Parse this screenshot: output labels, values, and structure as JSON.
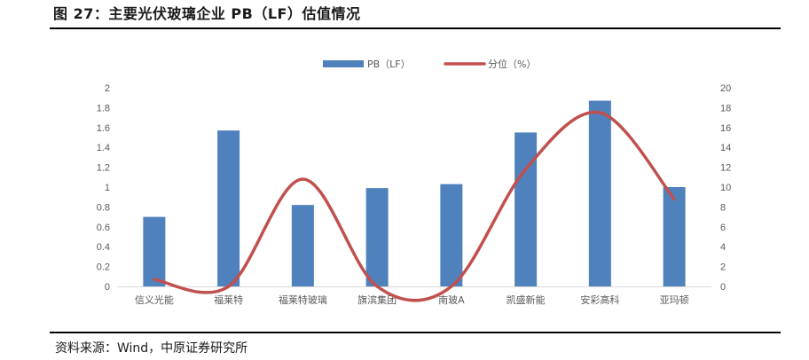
{
  "figure": {
    "title": "图 27：主要光伏玻璃企业 PB（LF）估值情况",
    "source": "资料来源：Wind，中原证券研究所"
  },
  "colors": {
    "bar": "#4f81bd",
    "line": "#c0504d",
    "axis": "#d9d9d9",
    "text": "#595959"
  },
  "chart_data": {
    "type": "bar",
    "categories": [
      "信义光能",
      "福莱特",
      "福莱特玻璃",
      "旗滨集团",
      "南玻A",
      "凯盛新能",
      "安彩高科",
      "亚玛顿"
    ],
    "series": [
      {
        "name": "PB（LF）",
        "type": "bar",
        "axis": "left",
        "values": [
          0.7,
          1.57,
          0.82,
          0.99,
          1.03,
          1.55,
          1.87,
          1.0
        ]
      },
      {
        "name": "分位（%）",
        "type": "line",
        "axis": "right",
        "values": [
          0.7,
          0,
          10.8,
          0,
          0,
          11.8,
          17.5,
          8.8
        ]
      }
    ],
    "y_left": {
      "min": 0,
      "max": 2,
      "ticks": [
        "0",
        "0.2",
        "0.4",
        "0.6",
        "0.8",
        "1",
        "1.2",
        "1.4",
        "1.6",
        "1.8",
        "2"
      ]
    },
    "y_right": {
      "min": 0,
      "max": 20,
      "ticks": [
        "0",
        "2",
        "4",
        "6",
        "8",
        "10",
        "12",
        "14",
        "16",
        "18",
        "20"
      ]
    },
    "grid": false,
    "legend_position": "top-center"
  }
}
